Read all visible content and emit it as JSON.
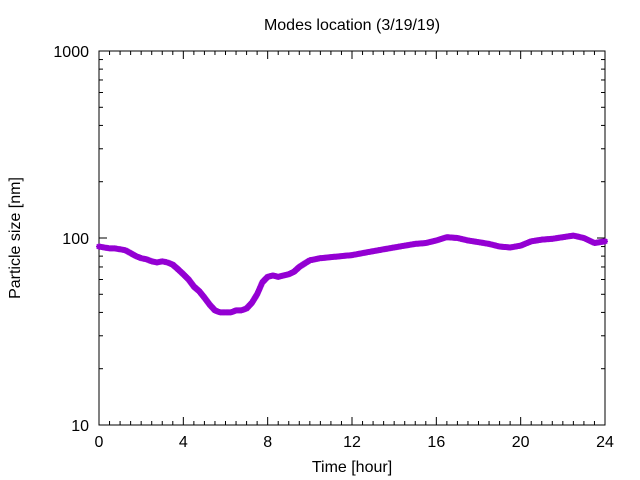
{
  "chart_data": {
    "type": "scatter",
    "title": "Modes location (3/19/19)",
    "xlabel": "Time [hour]",
    "ylabel": "Particle size [nm]",
    "xlim": [
      0,
      24
    ],
    "ylim": [
      10,
      1000
    ],
    "y_scale": "log",
    "grid": false,
    "legend": "none",
    "x_ticks": [
      0,
      4,
      8,
      12,
      16,
      20,
      24
    ],
    "x_tick_labels": [
      "0",
      "4",
      "8",
      "12",
      "16",
      "20",
      "24"
    ],
    "y_ticks": [
      10,
      100,
      1000
    ],
    "y_tick_labels": [
      "10",
      "100",
      "1000"
    ],
    "series": [
      {
        "color": "#9400d3",
        "marker": "star",
        "x": [
          0,
          0.25,
          0.5,
          0.75,
          1.0,
          1.25,
          1.5,
          1.75,
          2.0,
          2.25,
          2.5,
          2.75,
          3.0,
          3.25,
          3.5,
          3.75,
          4.0,
          4.25,
          4.5,
          4.75,
          5.0,
          5.25,
          5.5,
          5.75,
          6.0,
          6.25,
          6.5,
          6.75,
          7.0,
          7.25,
          7.5,
          7.75,
          8.0,
          8.25,
          8.5,
          8.75,
          9.0,
          9.25,
          9.5,
          9.75,
          10.0,
          10.5,
          11.0,
          11.5,
          12.0,
          12.5,
          13.0,
          13.5,
          14.0,
          14.5,
          15.0,
          15.5,
          16.0,
          16.5,
          17.0,
          17.5,
          18.0,
          18.5,
          19.0,
          19.5,
          20.0,
          20.5,
          21.0,
          21.5,
          22.0,
          22.5,
          23.0,
          23.5,
          24.0
        ],
        "y": [
          90,
          89,
          88,
          88,
          87,
          86,
          83,
          80,
          78,
          77,
          75,
          74,
          75,
          74,
          72,
          68,
          64,
          60,
          55,
          52,
          48,
          44,
          41,
          40,
          40,
          40,
          41,
          41,
          42,
          45,
          50,
          58,
          62,
          63,
          62,
          63,
          64,
          66,
          70,
          73,
          76,
          78,
          79,
          80,
          81,
          83,
          85,
          87,
          89,
          91,
          93,
          94,
          97,
          101,
          100,
          97,
          95,
          93,
          90,
          89,
          91,
          96,
          98,
          99,
          101,
          103,
          100,
          94,
          96
        ]
      }
    ]
  }
}
